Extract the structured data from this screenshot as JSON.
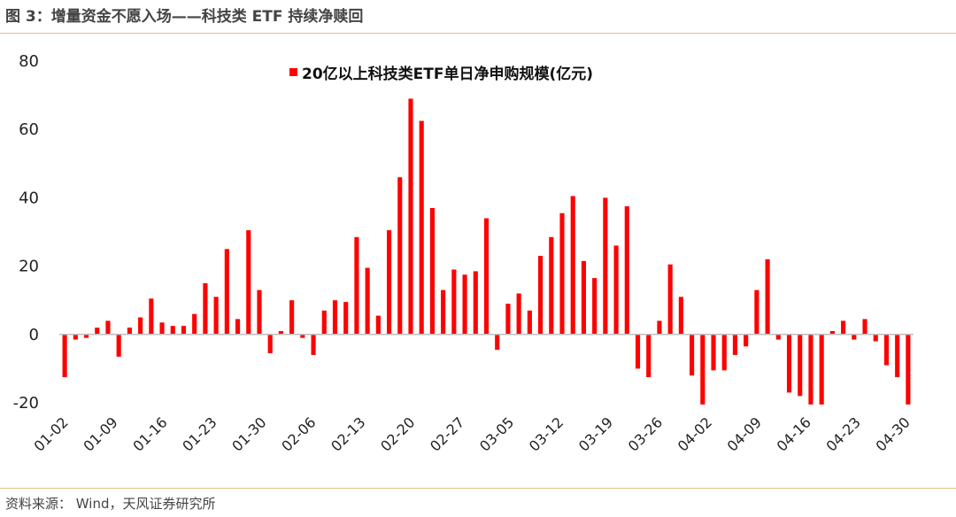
{
  "header": {
    "title": "图 3：增量资金不愿入场——科技类 ETF 持续净赎回"
  },
  "footer": {
    "source": "资料来源： Wind，天风证券研究所"
  },
  "colors": {
    "bar": "#ff0000",
    "rule": "#e4c18a",
    "axis": "#bfbfbf"
  },
  "chart_data": {
    "type": "bar",
    "series": [
      {
        "name": "20亿以上科技类ETF单日净申购规模(亿元)",
        "values": [
          -12.5,
          -1.5,
          -1,
          2,
          4,
          -6.5,
          2,
          5,
          10.5,
          3.5,
          2.5,
          2.5,
          6,
          15,
          11,
          25,
          4.5,
          30.5,
          13,
          -5.5,
          1,
          10,
          -1,
          -6,
          7,
          10,
          9.5,
          28.5,
          19.5,
          5.5,
          30.5,
          46,
          69,
          62.5,
          37,
          13,
          19,
          17.5,
          18.5,
          34,
          -4.5,
          9,
          12,
          7,
          23,
          28.5,
          35.5,
          40.5,
          21.5,
          16.5,
          40,
          26,
          37.5,
          -10,
          -12.5,
          4,
          20.5,
          11,
          -12,
          -20.5,
          -10.5,
          -10.5,
          -6,
          -3.5,
          13,
          22,
          -1.5,
          -17,
          -18,
          -20.5,
          -20.5,
          1,
          4,
          -1.5,
          4.5,
          -2,
          -9,
          -12.5,
          -20.5
        ]
      }
    ],
    "x_tick_labels": [
      "01-02",
      "01-09",
      "01-16",
      "01-23",
      "01-30",
      "02-06",
      "02-13",
      "02-20",
      "02-27",
      "03-05",
      "03-12",
      "03-19",
      "03-26",
      "04-02",
      "04-09",
      "04-16",
      "04-23",
      "04-30"
    ],
    "y_ticks": [
      "80",
      "60",
      "40",
      "20",
      "0",
      "-20"
    ],
    "ylim": [
      -20,
      80
    ],
    "legend_position": "top-center",
    "grid": false
  }
}
